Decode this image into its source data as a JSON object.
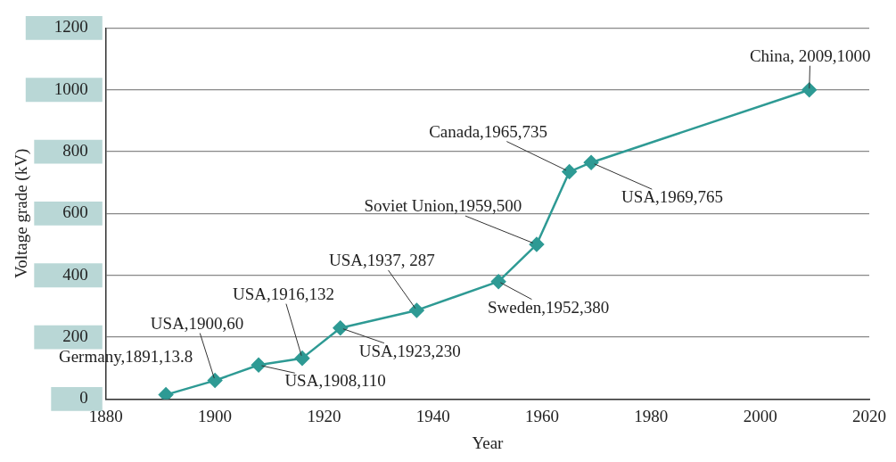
{
  "chart_data": {
    "type": "line",
    "xlabel": "Year",
    "ylabel": "Voltage grade (kV)",
    "x": [
      1891,
      1900,
      1908,
      1916,
      1923,
      1937,
      1952,
      1959,
      1965,
      1969,
      2009
    ],
    "series": [
      {
        "color": "#2e9a94",
        "values": [
          13.8,
          60,
          110,
          132,
          230,
          287,
          380,
          500,
          735,
          765,
          1000
        ]
      }
    ],
    "xlim": [
      1880,
      2020
    ],
    "xticks": [
      1880,
      1900,
      1920,
      1940,
      1960,
      1980,
      2000,
      2020
    ],
    "ylim": [
      0,
      1200
    ],
    "yticks": [
      0,
      200,
      400,
      600,
      800,
      1000,
      1200
    ],
    "grid": "y",
    "legend": false,
    "marker": "diamond",
    "line_style": "solid",
    "annotations": [
      {
        "text": "Germany,1891,13.8",
        "x": 1891,
        "y": 13.8
      },
      {
        "text": "USA,1900,60",
        "x": 1900,
        "y": 60
      },
      {
        "text": "USA,1908,110",
        "x": 1908,
        "y": 110
      },
      {
        "text": "USA,1916,132",
        "x": 1916,
        "y": 132
      },
      {
        "text": "USA,1923,230",
        "x": 1923,
        "y": 230
      },
      {
        "text": "USA,1937, 287",
        "x": 1937,
        "y": 287
      },
      {
        "text": "Sweden,1952,380",
        "x": 1952,
        "y": 380
      },
      {
        "text": "Soviet Union,1959,500",
        "x": 1959,
        "y": 500
      },
      {
        "text": "Canada,1965,735",
        "x": 1965,
        "y": 735
      },
      {
        "text": "USA,1969,765",
        "x": 1969,
        "y": 765
      },
      {
        "text": "China, 2009,1000",
        "x": 2009,
        "y": 1000
      }
    ]
  }
}
